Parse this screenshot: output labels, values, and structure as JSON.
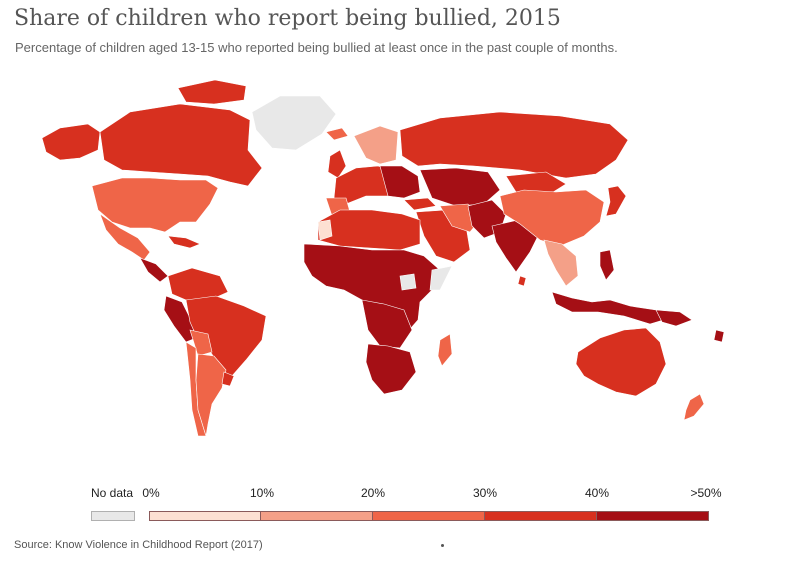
{
  "header": {
    "title": "Share of children who report being bullied, 2015",
    "subtitle": "Percentage of children aged 13-15 who reported being bullied at least once in the past couple of months."
  },
  "legend": {
    "no_data_label": "No data",
    "no_data_color": "#e8e8e8",
    "ticks": [
      "0%",
      "10%",
      "20%",
      "30%",
      "40%",
      ">50%"
    ],
    "bins": [
      {
        "range": [
          0,
          10
        ],
        "color": "#fde0d2"
      },
      {
        "range": [
          10,
          20
        ],
        "color": "#f4a088"
      },
      {
        "range": [
          20,
          30
        ],
        "color": "#ef6548"
      },
      {
        "range": [
          30,
          40
        ],
        "color": "#d7301f"
      },
      {
        "range": [
          40,
          50
        ],
        "color": "#a50f15"
      }
    ]
  },
  "map": {
    "colors": {
      "no_data": "#e8e8e8",
      "b1": "#fde0d2",
      "b2": "#f4a088",
      "b3": "#ef6548",
      "b4": "#d7301f",
      "b5": "#a50f15",
      "ocean": "#ffffff",
      "border": "#ffffff"
    }
  },
  "footer": {
    "source": "Source: Know Violence in Childhood Report (2017)"
  }
}
